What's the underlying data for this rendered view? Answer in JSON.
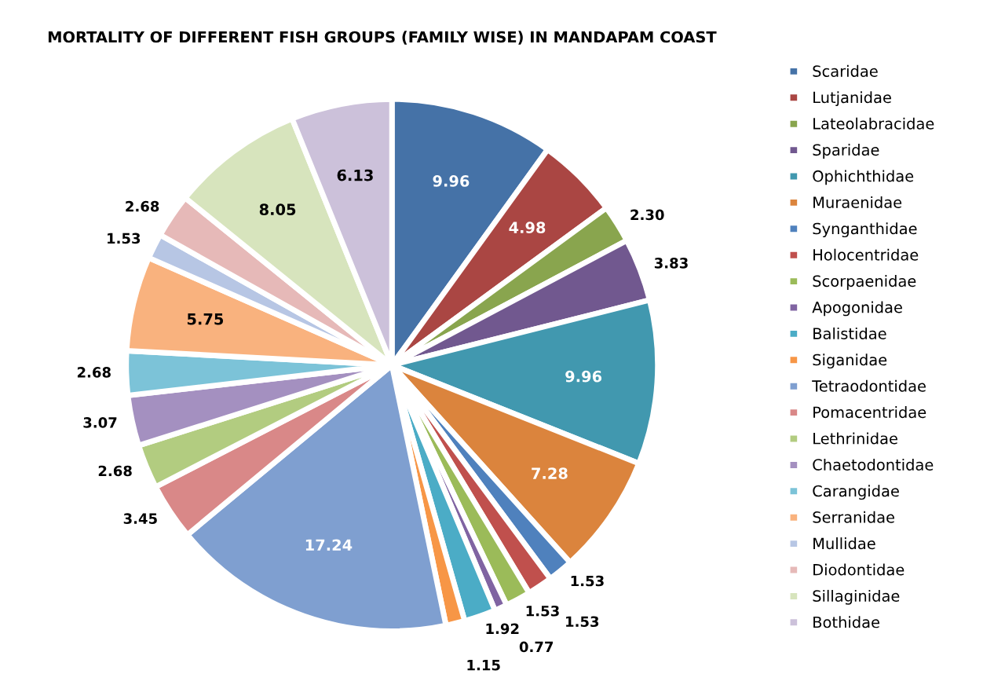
{
  "chart_data": {
    "type": "pie",
    "title": "MORTALITY OF DIFFERENT FISH GROUPS (FAMILY WISE) IN MANDAPAM COAST",
    "categories": [
      "Scaridae",
      "Lutjanidae",
      "Lateolabracidae",
      "Sparidae",
      "Ophichthidae",
      "Muraenidae",
      "Synganthidae",
      "Holocentridae",
      "Scorpaenidae",
      "Apogonidae",
      "Balistidae",
      "Siganidae",
      "Tetraodontidae",
      "Pomacentridae",
      "Lethrinidae",
      "Chaetodontidae",
      "Carangidae",
      "Serranidae",
      "Mullidae",
      "Diodontidae",
      "Sillaginidae",
      "Bothidae"
    ],
    "values": [
      9.96,
      4.98,
      2.3,
      3.83,
      9.96,
      7.28,
      1.53,
      1.53,
      1.53,
      0.77,
      1.92,
      1.15,
      17.24,
      3.45,
      2.68,
      3.07,
      2.68,
      5.75,
      1.53,
      2.68,
      8.05,
      6.13
    ],
    "value_labels": [
      "9.96",
      "4.98",
      "2.30",
      "3.83",
      "9.96",
      "7.28",
      "1.53",
      "1.53",
      "1.53",
      "0.77",
      "1.92",
      "1.15",
      "17.24",
      "3.45",
      "2.68",
      "3.07",
      "2.68",
      "5.75",
      "1.53",
      "2.68",
      "8.05",
      "6.13"
    ],
    "colors": [
      "#4572a7",
      "#aa4643",
      "#89a54e",
      "#71588f",
      "#4198af",
      "#db843d",
      "#4f81bd",
      "#c0504d",
      "#9bbb59",
      "#8064a2",
      "#4bacc6",
      "#f79646",
      "#7f9fd0",
      "#d98888",
      "#b2cc80",
      "#a490c0",
      "#7cc3d8",
      "#f9b27e",
      "#b7c6e4",
      "#e6b9b8",
      "#d7e4bd",
      "#ccc1da"
    ],
    "legend": "right"
  }
}
